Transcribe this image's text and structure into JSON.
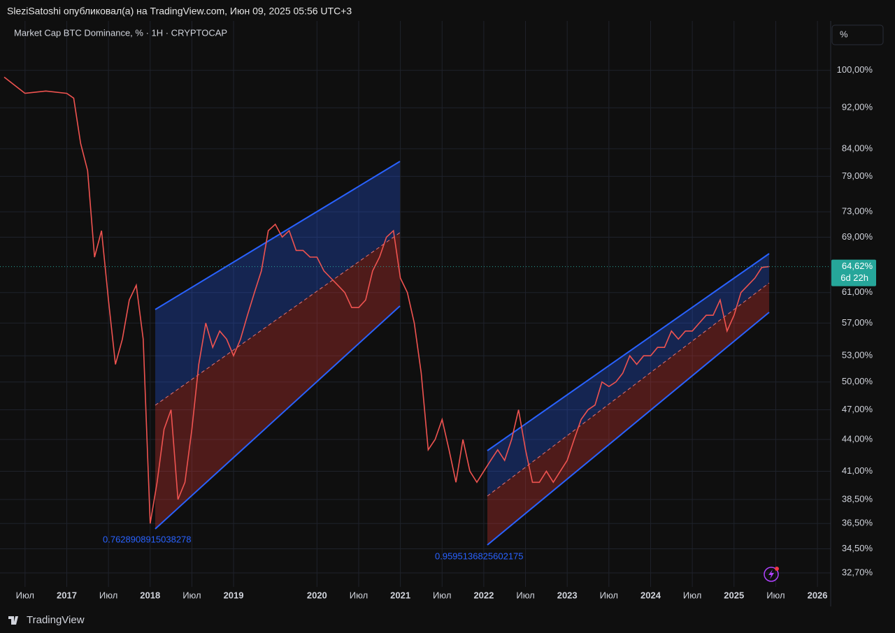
{
  "header": {
    "byline": "SleziSatoshi опубликовал(а) на TradingView.com, Июн 09, 2025 05:56 UTC+3",
    "brand": "TradingView",
    "scale_button": "%"
  },
  "chart_data": {
    "type": "line",
    "title": "Market Cap BTC Dominance, % · 1H · CRYPTOCAP",
    "log_scale": true,
    "grid": true,
    "color": "#ef5350",
    "x": [
      "2016-04",
      "2016-07",
      "2016-10",
      "2017-01",
      "2017-02",
      "2017-03",
      "2017-04",
      "2017-05",
      "2017-06",
      "2017-07",
      "2017-08",
      "2017-09",
      "2017-10",
      "2017-11",
      "2017-12",
      "2018-01",
      "2018-02",
      "2018-03",
      "2018-04",
      "2018-05",
      "2018-06",
      "2018-07",
      "2018-08",
      "2018-09",
      "2018-10",
      "2018-11",
      "2018-12",
      "2019-01",
      "2019-02",
      "2019-03",
      "2019-04",
      "2019-05",
      "2019-06",
      "2019-07",
      "2019-08",
      "2019-09",
      "2019-10",
      "2019-11",
      "2019-12",
      "2020-01",
      "2020-02",
      "2020-03",
      "2020-04",
      "2020-05",
      "2020-06",
      "2020-07",
      "2020-08",
      "2020-09",
      "2020-10",
      "2020-11",
      "2020-12",
      "2021-01",
      "2021-02",
      "2021-03",
      "2021-04",
      "2021-05",
      "2021-06",
      "2021-07",
      "2021-08",
      "2021-09",
      "2021-10",
      "2021-11",
      "2021-12",
      "2022-01",
      "2022-02",
      "2022-03",
      "2022-04",
      "2022-05",
      "2022-06",
      "2022-07",
      "2022-08",
      "2022-09",
      "2022-10",
      "2022-11",
      "2022-12",
      "2023-01",
      "2023-02",
      "2023-03",
      "2023-04",
      "2023-05",
      "2023-06",
      "2023-07",
      "2023-08",
      "2023-09",
      "2023-10",
      "2023-11",
      "2023-12",
      "2024-01",
      "2024-02",
      "2024-03",
      "2024-04",
      "2024-05",
      "2024-06",
      "2024-07",
      "2024-08",
      "2024-09",
      "2024-10",
      "2024-11",
      "2024-12",
      "2025-01",
      "2025-02",
      "2025-03",
      "2025-04",
      "2025-05",
      "2025-06"
    ],
    "values": [
      98.5,
      95,
      95.5,
      95,
      94,
      85,
      80,
      66,
      70,
      60,
      52,
      55,
      60,
      62,
      55,
      36.5,
      40,
      45,
      47,
      38.5,
      40,
      45,
      52,
      57,
      54,
      56,
      55,
      53,
      55,
      58,
      61,
      64,
      70,
      71,
      69,
      70,
      67,
      67,
      66,
      66,
      64,
      63,
      62,
      61,
      59,
      59,
      60,
      64,
      66,
      69,
      70,
      63,
      61,
      57,
      51,
      43,
      44,
      46,
      43,
      40,
      44,
      41,
      40,
      41,
      42,
      43,
      42,
      44,
      47,
      43,
      40,
      40,
      41,
      40,
      41,
      42,
      44,
      46,
      47,
      47.5,
      50,
      49.5,
      50,
      51,
      53,
      52,
      53,
      53,
      54,
      54,
      56,
      55,
      56,
      56,
      57,
      58,
      58,
      60,
      56,
      58,
      61,
      62,
      63,
      64.5,
      64.62
    ],
    "xlim": [
      "2016-04",
      "2026-02"
    ],
    "ylim": [
      31.7,
      111.6
    ],
    "xticks": [
      {
        "value": "2016-07",
        "label": "Июл"
      },
      "2017",
      {
        "value": "2017-07",
        "label": "Июл"
      },
      "2018",
      {
        "value": "2018-07",
        "label": "Июл"
      },
      "2019",
      "2020",
      {
        "value": "2020-07",
        "label": "Июл"
      },
      "2021",
      {
        "value": "2021-07",
        "label": "Июл"
      },
      "2022",
      {
        "value": "2022-07",
        "label": "Июл"
      },
      "2023",
      {
        "value": "2023-07",
        "label": "Июл"
      },
      "2024",
      {
        "value": "2024-07",
        "label": "Июл"
      },
      "2025",
      {
        "value": "2025-07",
        "label": "Июл"
      },
      "2026"
    ],
    "yticks": [
      {
        "value": 100,
        "label": "100,00%"
      },
      {
        "value": 92,
        "label": "92,00%"
      },
      {
        "value": 84,
        "label": "84,00%"
      },
      {
        "value": 79,
        "label": "79,00%"
      },
      {
        "value": 73,
        "label": "73,00%"
      },
      {
        "value": 69,
        "label": "69,00%"
      },
      {
        "value": 61,
        "label": "61,00%"
      },
      {
        "value": 57,
        "label": "57,00%"
      },
      {
        "value": 53,
        "label": "53,00%"
      },
      {
        "value": 50,
        "label": "50,00%"
      },
      {
        "value": 47,
        "label": "47,00%"
      },
      {
        "value": 44,
        "label": "44,00%"
      },
      {
        "value": 41,
        "label": "41,00%"
      },
      {
        "value": 38.5,
        "label": "38,50%"
      },
      {
        "value": 36.5,
        "label": "36,50%"
      },
      {
        "value": 34.5,
        "label": "34,50%"
      },
      {
        "value": 32.7,
        "label": "32,70%"
      }
    ],
    "last_price": {
      "value": 64.62,
      "label": "64,62%"
    },
    "countdown": "6d 22h",
    "annotations": [
      "0.7628908915038278",
      "0.9595136825602175"
    ]
  }
}
